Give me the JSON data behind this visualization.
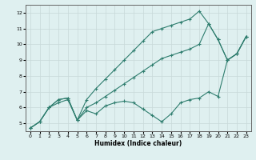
{
  "xlabel": "Humidex (Indice chaleur)",
  "x_values": [
    0,
    1,
    2,
    3,
    4,
    5,
    6,
    7,
    8,
    9,
    10,
    11,
    12,
    13,
    14,
    15,
    16,
    17,
    18,
    19,
    20,
    21,
    22,
    23
  ],
  "line1": [
    4.7,
    5.1,
    6.0,
    6.3,
    6.5,
    5.2,
    5.8,
    5.6,
    6.1,
    6.3,
    6.4,
    6.3,
    5.9,
    5.5,
    5.1,
    5.6,
    6.3,
    6.5,
    6.6,
    7.0,
    6.7,
    9.0,
    9.4,
    10.5
  ],
  "line2": [
    4.7,
    5.1,
    6.0,
    6.5,
    6.6,
    5.2,
    6.0,
    6.3,
    6.7,
    7.1,
    7.5,
    7.9,
    8.3,
    8.7,
    9.1,
    9.3,
    9.5,
    9.7,
    10.0,
    11.3,
    10.3,
    9.0,
    9.4,
    10.5
  ],
  "line3": [
    4.7,
    5.1,
    6.0,
    6.5,
    6.6,
    5.2,
    6.5,
    7.2,
    7.8,
    8.4,
    9.0,
    9.6,
    10.2,
    10.8,
    11.0,
    11.2,
    11.4,
    11.6,
    12.1,
    11.3,
    10.3,
    9.0,
    9.4,
    10.5
  ],
  "line_color": "#2e7d6e",
  "bg_color": "#dff0f0",
  "grid_color": "#c8d8d8",
  "ylim": [
    4.5,
    12.5
  ],
  "xlim": [
    -0.5,
    23.5
  ],
  "yticks": [
    5,
    6,
    7,
    8,
    9,
    10,
    11,
    12
  ],
  "xticks": [
    0,
    1,
    2,
    3,
    4,
    5,
    6,
    7,
    8,
    9,
    10,
    11,
    12,
    13,
    14,
    15,
    16,
    17,
    18,
    19,
    20,
    21,
    22,
    23
  ]
}
